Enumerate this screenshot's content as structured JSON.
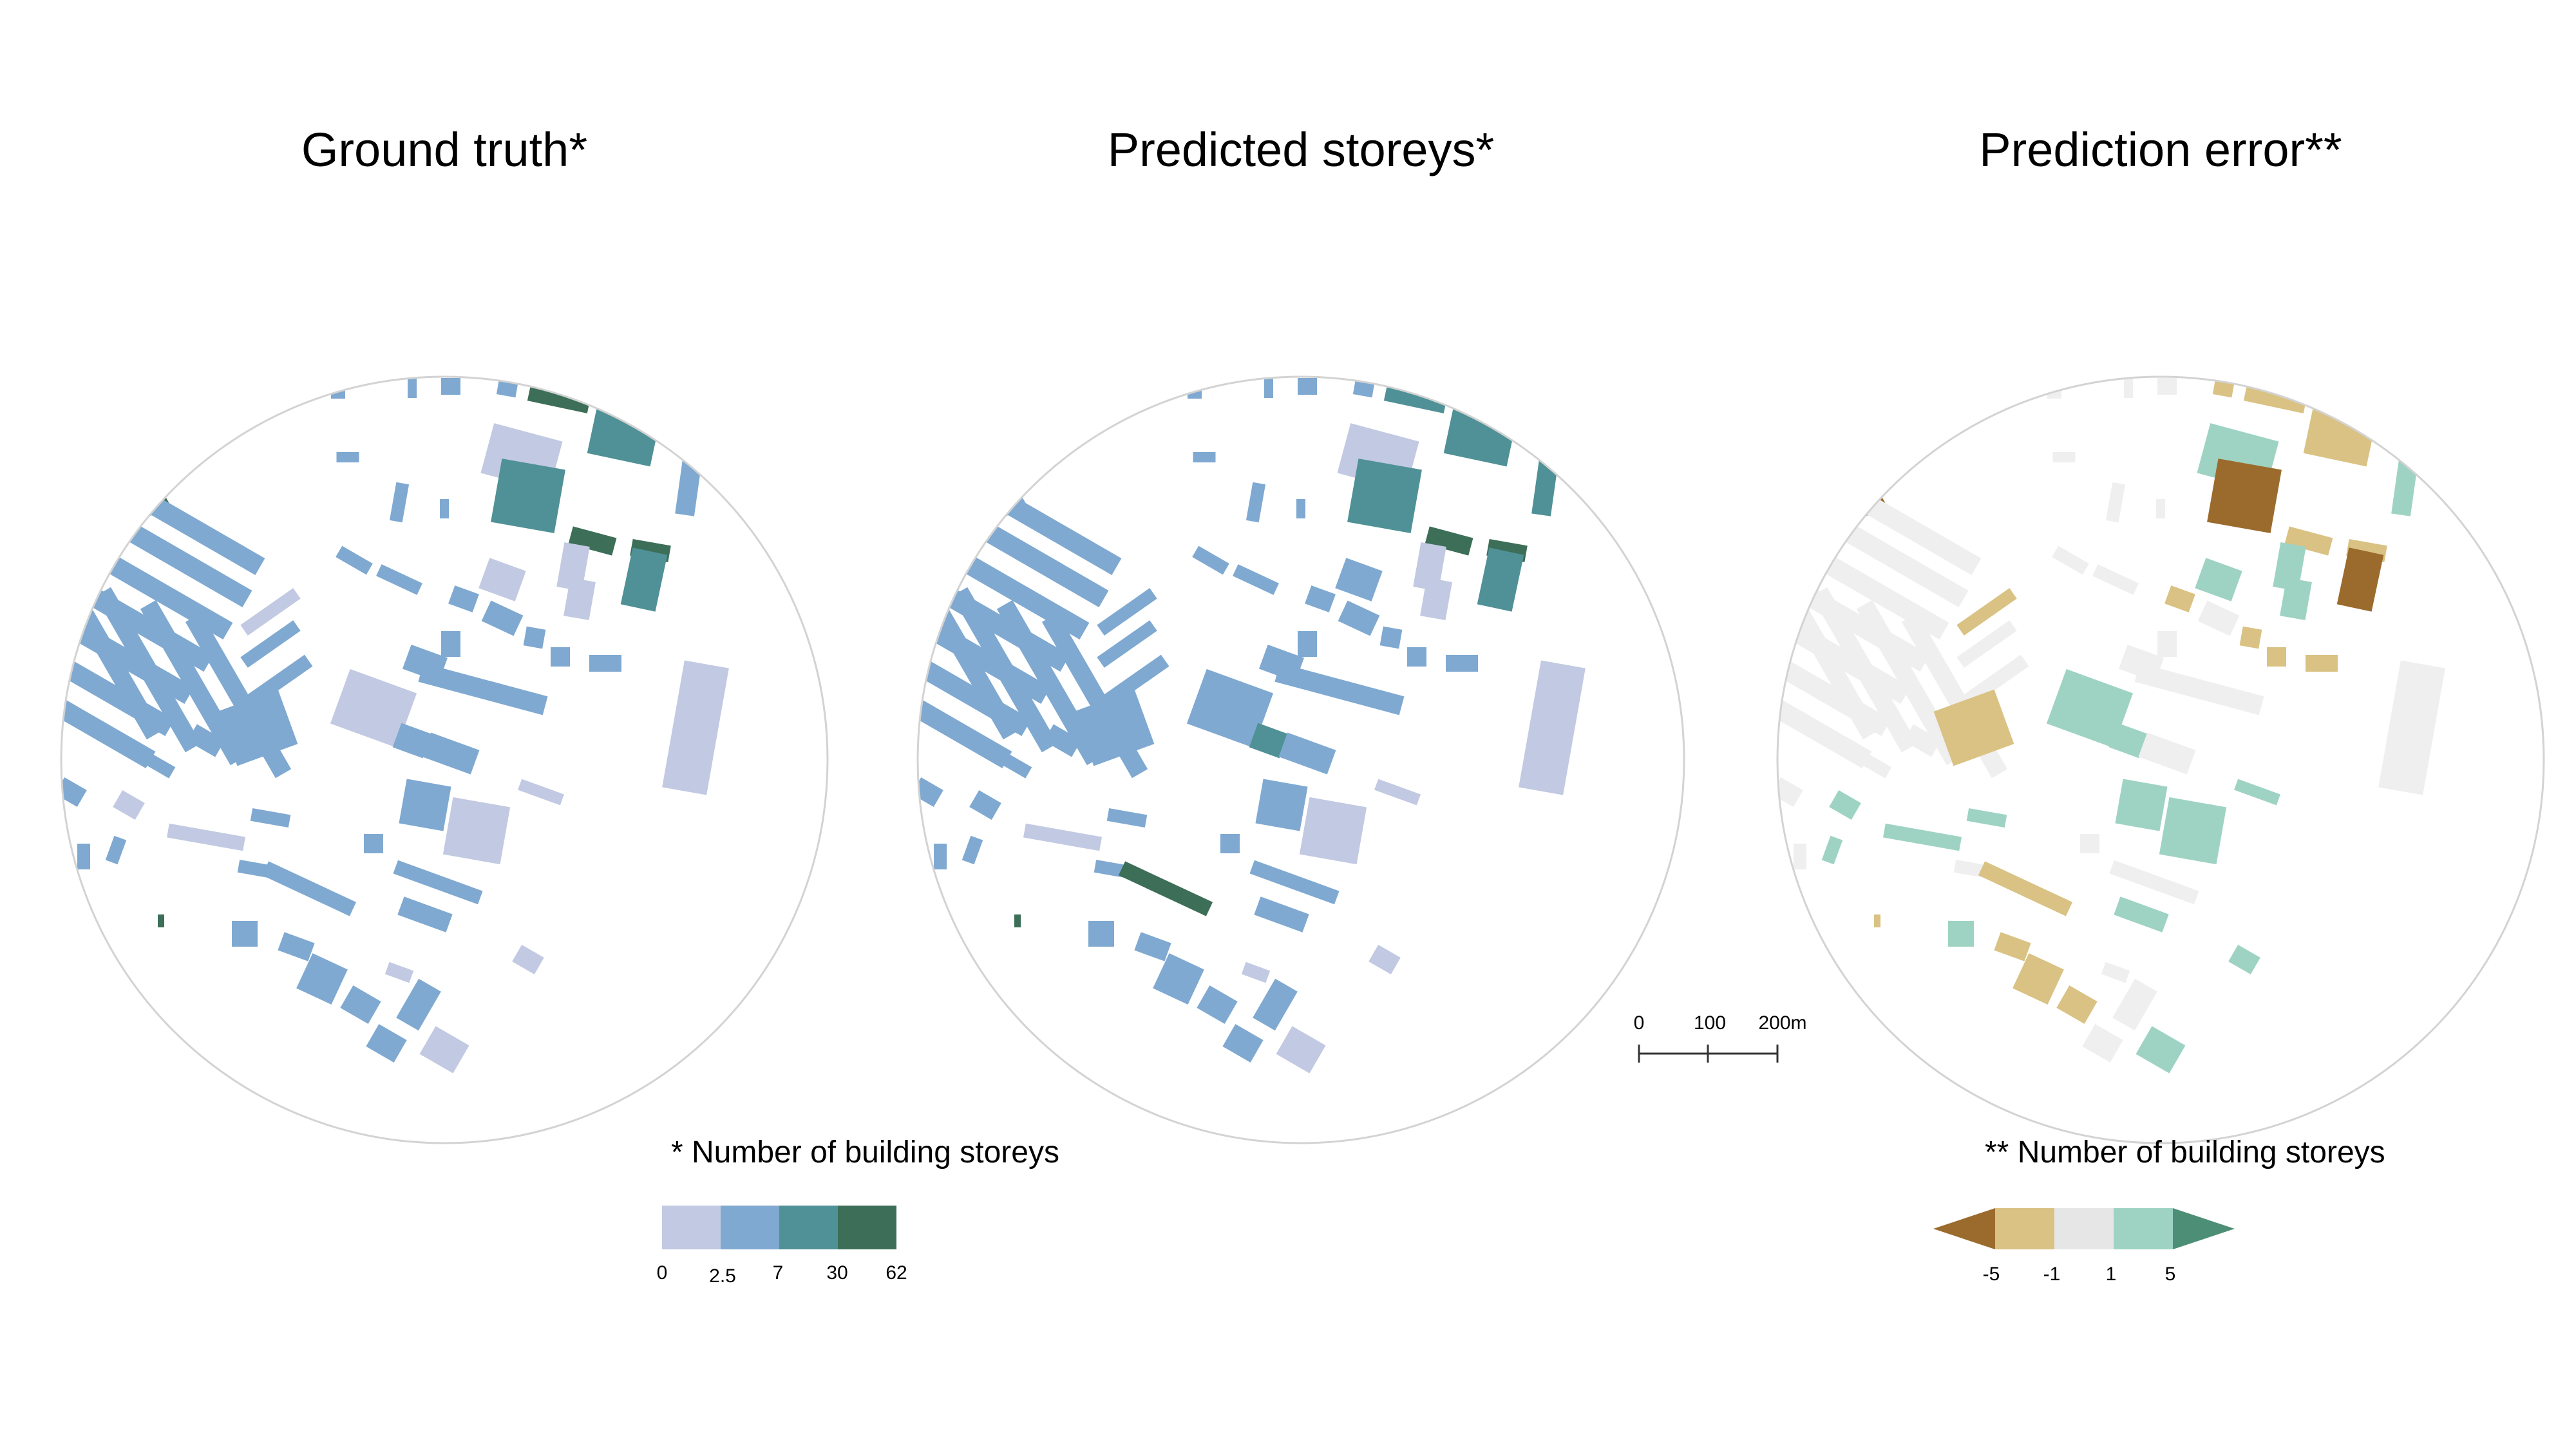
{
  "panels": {
    "ground_truth_title": "Ground truth*",
    "predicted_title": "Predicted storeys*",
    "error_title": "Prediction error**"
  },
  "scalebar": {
    "ticks": [
      "0",
      "100",
      "200m"
    ]
  },
  "legend_storeys": {
    "title": "* Number of building storeys",
    "ticks": [
      "0",
      "2.5",
      "7",
      "30",
      "62"
    ],
    "colors": [
      "#c2c9e2",
      "#7fa9d1",
      "#4f9196",
      "#3c6e58"
    ]
  },
  "legend_error": {
    "title": "** Number of building storeys",
    "ticks": [
      "-5",
      "-1",
      "1",
      "5"
    ],
    "colors": [
      "#9a6b2c",
      "#d9c283",
      "#e6e6e6",
      "#9ed3c3",
      "#4d8f76"
    ]
  },
  "map_colors": {
    "light": "#c2c9e2",
    "mid": "#7fa9d1",
    "teal": "#4f9196",
    "dark": "#3c6e58",
    "err_grey": "#efefef",
    "err_tan": "#d9c283",
    "err_brown": "#9a6b2c",
    "err_mint": "#9ed3c3",
    "err_green": "#4d8f76",
    "circle_stroke": "#d3d3d3"
  }
}
